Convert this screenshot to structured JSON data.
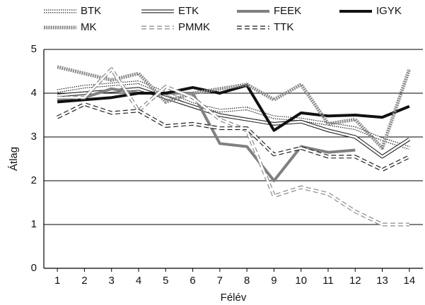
{
  "chart_data": {
    "type": "line",
    "x_label": "Félév",
    "y_label": "Átlag",
    "categories": [
      1,
      2,
      3,
      4,
      5,
      6,
      7,
      8,
      9,
      10,
      11,
      12,
      13,
      14
    ],
    "ylim": [
      0,
      5
    ],
    "yticks": [
      0,
      1,
      2,
      3,
      4,
      5
    ],
    "grid": true,
    "series": [
      {
        "name": "BTK",
        "color": "#222222",
        "style": "double-dotted",
        "values": [
          4.05,
          4.15,
          4.2,
          4.25,
          4.0,
          3.75,
          3.6,
          3.65,
          3.45,
          3.4,
          3.3,
          3.2,
          2.95,
          2.75
        ]
      },
      {
        "name": "ETK",
        "color": "#222222",
        "style": "double",
        "values": [
          3.95,
          4.0,
          4.05,
          4.1,
          3.9,
          3.7,
          3.5,
          3.4,
          3.3,
          3.35,
          3.15,
          3.0,
          2.55,
          2.95
        ]
      },
      {
        "name": "FEEK",
        "color": "#808080",
        "style": "thick",
        "values": [
          3.85,
          3.9,
          4.1,
          4.0,
          4.0,
          4.0,
          2.85,
          2.78,
          2.0,
          2.78,
          2.65,
          2.7,
          null,
          null
        ]
      },
      {
        "name": "IGYK",
        "color": "#111111",
        "style": "thick",
        "values": [
          3.8,
          3.85,
          3.9,
          4.0,
          4.0,
          4.13,
          4.0,
          4.18,
          3.15,
          3.55,
          3.48,
          3.5,
          3.45,
          3.7
        ]
      },
      {
        "name": "MK",
        "color": "#8a8a8a",
        "style": "dotted-thick",
        "values": [
          4.6,
          4.45,
          4.3,
          4.45,
          3.8,
          4.0,
          4.1,
          4.2,
          3.85,
          4.2,
          3.3,
          3.4,
          2.75,
          4.55
        ]
      },
      {
        "name": "PMMK",
        "color": "#8a8a8a",
        "style": "double-dashed",
        "values": [
          3.9,
          3.9,
          4.55,
          3.6,
          4.15,
          3.9,
          3.4,
          3.15,
          1.65,
          1.85,
          1.7,
          1.3,
          1.0,
          1.0
        ]
      },
      {
        "name": "TTK",
        "color": "#222222",
        "style": "double-dashed",
        "values": [
          3.45,
          3.75,
          3.55,
          3.6,
          3.25,
          3.3,
          3.2,
          3.2,
          2.6,
          2.75,
          2.55,
          2.55,
          2.25,
          2.55
        ]
      }
    ]
  }
}
